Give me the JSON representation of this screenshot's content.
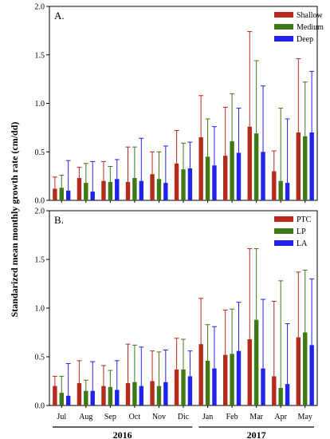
{
  "chart_data": {
    "type": "bar",
    "ylabel": "Standarized mean monthly growth rate (cm/dd)",
    "categories": [
      "Jul",
      "Aug",
      "Sep",
      "Oct",
      "Nov",
      "Dic",
      "Jan",
      "Feb",
      "Mar",
      "Apr",
      "May"
    ],
    "year_groups": [
      {
        "label": "2016",
        "from": "Jul",
        "to": "Dic"
      },
      {
        "label": "2017",
        "from": "Jan",
        "to": "May"
      }
    ],
    "ylim": [
      0,
      2.0
    ],
    "yticks": [
      "0.0",
      "0.5",
      "1.0",
      "1.5",
      "2.0"
    ],
    "legend_position": "top-right",
    "panels": [
      {
        "label": "A.",
        "series": [
          {
            "name": "Shallow",
            "color": "#b52a1a",
            "values": [
              0.12,
              0.23,
              0.2,
              0.19,
              0.27,
              0.38,
              0.65,
              0.46,
              0.76,
              0.3,
              0.7
            ],
            "errors": [
              0.12,
              0.11,
              0.2,
              0.36,
              0.23,
              0.34,
              0.43,
              0.5,
              0.98,
              0.21,
              0.76
            ]
          },
          {
            "name": "Medium",
            "color": "#3f7a16",
            "values": [
              0.13,
              0.18,
              0.19,
              0.23,
              0.22,
              0.32,
              0.45,
              0.61,
              0.69,
              0.2,
              0.66
            ],
            "errors": [
              0.13,
              0.2,
              0.16,
              0.32,
              0.28,
              0.27,
              0.39,
              0.49,
              0.75,
              0.75,
              0.56
            ]
          },
          {
            "name": "Deep",
            "color": "#1f24e8",
            "values": [
              0.1,
              0.09,
              0.22,
              0.2,
              0.18,
              0.33,
              0.36,
              0.49,
              0.5,
              0.18,
              0.7
            ],
            "errors": [
              0.31,
              0.31,
              0.2,
              0.44,
              0.38,
              0.27,
              0.4,
              0.46,
              0.68,
              0.66,
              0.63
            ]
          }
        ]
      },
      {
        "label": "B.",
        "series": [
          {
            "name": "PTC",
            "color": "#b52a1a",
            "values": [
              0.2,
              0.23,
              0.2,
              0.23,
              0.25,
              0.37,
              0.63,
              0.52,
              0.68,
              0.3,
              0.7
            ],
            "errors": [
              0.1,
              0.23,
              0.21,
              0.4,
              0.31,
              0.32,
              0.47,
              0.46,
              0.93,
              0.77,
              0.67
            ]
          },
          {
            "name": "LP",
            "color": "#3f7a16",
            "values": [
              0.13,
              0.15,
              0.19,
              0.24,
              0.2,
              0.37,
              0.46,
              0.53,
              0.88,
              0.18,
              0.75
            ],
            "errors": [
              0.17,
              0.11,
              0.17,
              0.38,
              0.35,
              0.31,
              0.37,
              0.46,
              0.73,
              1.1,
              0.64
            ]
          },
          {
            "name": "LA",
            "color": "#1f24e8",
            "values": [
              0.1,
              0.15,
              0.16,
              0.2,
              0.24,
              0.3,
              0.38,
              0.56,
              0.38,
              0.22,
              0.62
            ],
            "errors": [
              0.33,
              0.3,
              0.3,
              0.4,
              0.33,
              0.26,
              0.43,
              0.5,
              0.71,
              0.62,
              0.68
            ]
          }
        ]
      }
    ]
  }
}
